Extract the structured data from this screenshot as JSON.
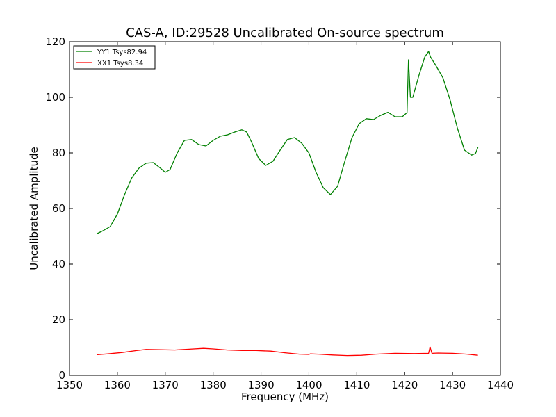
{
  "chart_data": {
    "type": "line",
    "title": "CAS-A, ID:29528 Uncalibrated On-source spectrum",
    "xlabel": "Frequency (MHz)",
    "ylabel": "Uncalibrated Amplitude",
    "xlim": [
      1350,
      1440
    ],
    "ylim": [
      0,
      120
    ],
    "xticks": [
      1350,
      1360,
      1370,
      1380,
      1390,
      1400,
      1410,
      1420,
      1430,
      1440
    ],
    "yticks": [
      0,
      20,
      40,
      60,
      80,
      100,
      120
    ],
    "grid": false,
    "legend_position": "top-left",
    "series": [
      {
        "name": "YY1 Tsys82.94",
        "color": "#008000",
        "x": [
          1355.8,
          1357,
          1358.5,
          1360,
          1361.5,
          1363,
          1364.5,
          1366,
          1367.5,
          1369,
          1370,
          1371,
          1372.5,
          1374,
          1375.5,
          1377,
          1378.5,
          1380,
          1381.5,
          1383,
          1384.5,
          1386,
          1387,
          1388,
          1389.5,
          1391,
          1392.5,
          1394,
          1395.5,
          1397,
          1398.5,
          1400,
          1401.5,
          1403,
          1404.5,
          1406,
          1407.5,
          1409,
          1410.5,
          1412,
          1413.5,
          1415,
          1416.5,
          1418,
          1419.5,
          1420.5,
          1420.8,
          1421.2,
          1421.7,
          1423,
          1424.2,
          1425,
          1425.4,
          1426.5,
          1428,
          1429.5,
          1431,
          1432.5,
          1434,
          1434.8,
          1435.3
        ],
        "values": [
          51,
          52,
          53.5,
          58,
          65,
          71,
          74.5,
          76.3,
          76.5,
          74.5,
          73,
          74,
          80,
          84.5,
          84.8,
          83,
          82.5,
          84.5,
          86,
          86.5,
          87.5,
          88.3,
          87.5,
          84,
          78,
          75.5,
          77,
          81,
          84.8,
          85.5,
          83.5,
          80,
          73,
          67.5,
          65,
          68,
          77,
          85.5,
          90.5,
          92.3,
          92,
          93.5,
          94.6,
          93,
          93,
          94.5,
          113.5,
          100,
          100,
          108,
          114.5,
          116.5,
          114.5,
          111.5,
          107,
          99,
          89,
          81,
          79.2,
          79.8,
          82
        ]
      },
      {
        "name": "XX1 Tsys8.34",
        "color": "#ff0000",
        "x": [
          1355.8,
          1358,
          1361,
          1364,
          1366,
          1369,
          1372,
          1375,
          1378,
          1380,
          1383,
          1386,
          1389,
          1392,
          1395,
          1398,
          1400,
          1400.3,
          1402,
          1405,
          1408,
          1411,
          1414,
          1418,
          1422,
          1425,
          1425.3,
          1425.7,
          1427,
          1430,
          1433,
          1435.3
        ],
        "values": [
          7.4,
          7.7,
          8.2,
          8.9,
          9.3,
          9.2,
          9.1,
          9.4,
          9.7,
          9.5,
          9.1,
          8.9,
          8.9,
          8.7,
          8.1,
          7.6,
          7.5,
          7.7,
          7.6,
          7.3,
          7.1,
          7.2,
          7.6,
          7.9,
          7.8,
          7.9,
          10.2,
          7.9,
          8.0,
          7.9,
          7.6,
          7.2
        ]
      }
    ]
  }
}
